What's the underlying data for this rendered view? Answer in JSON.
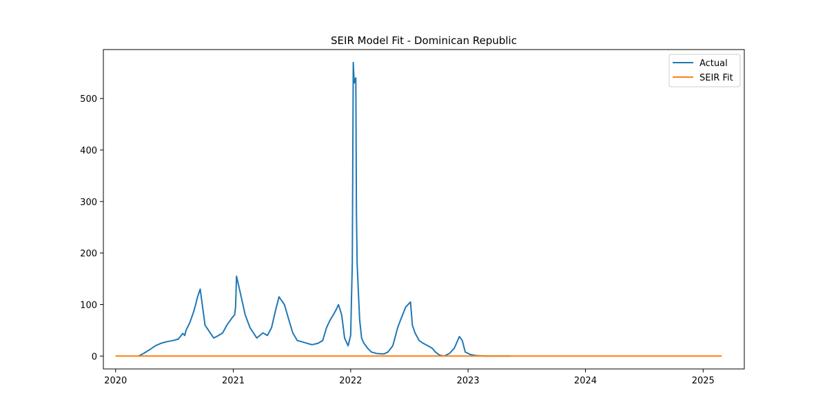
{
  "chart_data": {
    "type": "line",
    "title": "SEIR Model Fit - Dominican Republic",
    "xlabel": "",
    "ylabel": "",
    "xlim": [
      "2019-11-24",
      "2025-05-09"
    ],
    "ylim": [
      -25,
      595
    ],
    "x_ticks": [
      "2020",
      "2021",
      "2022",
      "2023",
      "2024",
      "2025"
    ],
    "y_ticks": [
      0,
      100,
      200,
      300,
      400,
      500
    ],
    "legend_position": "top-right",
    "grid": false,
    "series": [
      {
        "name": "Actual",
        "color": "#1f77b4",
        "x": [
          "2020-03-12",
          "2020-03-28",
          "2020-04-15",
          "2020-05-04",
          "2020-05-22",
          "2020-06-09",
          "2020-06-27",
          "2020-07-14",
          "2020-07-28",
          "2020-08-03",
          "2020-08-07",
          "2020-08-19",
          "2020-08-30",
          "2020-09-06",
          "2020-09-12",
          "2020-09-20",
          "2020-10-05",
          "2020-10-16",
          "2020-11-01",
          "2020-11-16",
          "2020-11-29",
          "2020-12-12",
          "2020-12-29",
          "2021-01-05",
          "2021-01-08",
          "2021-01-11",
          "2021-01-22",
          "2021-02-07",
          "2021-02-22",
          "2021-03-15",
          "2021-04-03",
          "2021-04-17",
          "2021-04-30",
          "2021-05-13",
          "2021-05-23",
          "2021-06-09",
          "2021-06-23",
          "2021-07-05",
          "2021-07-19",
          "2021-08-01",
          "2021-08-17",
          "2021-09-03",
          "2021-09-22",
          "2021-10-06",
          "2021-10-18",
          "2021-10-29",
          "2021-11-08",
          "2021-11-17",
          "2021-11-24",
          "2021-12-04",
          "2021-12-13",
          "2021-12-24",
          "2022-01-01",
          "2022-01-06",
          "2022-01-09",
          "2022-01-12",
          "2022-01-17",
          "2022-01-19",
          "2022-01-21",
          "2022-01-26",
          "2022-01-29",
          "2022-02-04",
          "2022-02-11",
          "2022-02-23",
          "2022-03-06",
          "2022-03-22",
          "2022-04-14",
          "2022-04-27",
          "2022-05-12",
          "2022-05-27",
          "2022-06-05",
          "2022-06-21",
          "2022-07-06",
          "2022-07-12",
          "2022-07-20",
          "2022-08-02",
          "2022-08-14",
          "2022-08-29",
          "2022-09-12",
          "2022-09-21",
          "2022-10-04",
          "2022-10-19",
          "2022-11-04",
          "2022-11-19",
          "2022-12-05",
          "2022-12-14",
          "2022-12-23",
          "2023-01-08",
          "2023-01-24",
          "2023-02-20",
          "2023-03-20",
          "2023-04-13",
          "2023-05-13"
        ],
        "y": [
          0,
          5,
          12,
          20,
          25,
          28,
          30,
          33,
          44,
          40,
          50,
          65,
          85,
          100,
          115,
          130,
          60,
          50,
          35,
          40,
          45,
          60,
          75,
          80,
          95,
          155,
          125,
          80,
          55,
          35,
          45,
          40,
          55,
          90,
          115,
          100,
          70,
          45,
          30,
          28,
          25,
          22,
          25,
          30,
          55,
          70,
          80,
          90,
          100,
          80,
          35,
          20,
          40,
          180,
          570,
          530,
          540,
          280,
          180,
          110,
          70,
          35,
          25,
          15,
          8,
          5,
          4,
          8,
          20,
          55,
          70,
          95,
          105,
          60,
          45,
          30,
          25,
          20,
          15,
          8,
          2,
          0,
          5,
          15,
          38,
          30,
          8,
          3,
          1,
          0,
          0,
          0,
          0
        ]
      },
      {
        "name": "SEIR Fit",
        "color": "#ff7f0e",
        "x": [
          "2020-01-01",
          "2025-02-28"
        ],
        "y": [
          0,
          0
        ]
      }
    ]
  }
}
